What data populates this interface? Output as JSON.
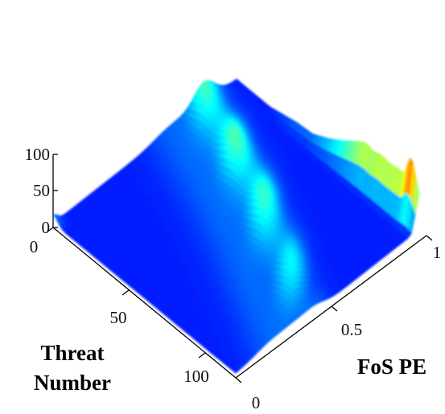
{
  "chart_data": {
    "type": "surface",
    "title": "",
    "xlabel": "FoS PE",
    "ylabel": "Threat Number",
    "zlabel": "",
    "xlim": [
      0,
      1
    ],
    "ylim": [
      0,
      120
    ],
    "zlim": [
      0,
      100
    ],
    "x_ticks": [
      "0",
      "0.5",
      "1"
    ],
    "y_ticks": [
      "0",
      "50",
      "100"
    ],
    "z_ticks": [
      "0",
      "50",
      "100"
    ],
    "colormap": "jet",
    "grid": false,
    "back_wall_profile": {
      "threat_number": [
        0,
        10,
        20,
        30,
        40,
        50,
        60,
        70,
        80,
        85,
        90,
        95,
        100,
        110,
        115,
        120
      ],
      "value": [
        2,
        3,
        5,
        10,
        15,
        17,
        28,
        42,
        58,
        65,
        62,
        66,
        64,
        67,
        100,
        55
      ]
    },
    "ridge_profile": {
      "threat_number": [
        0,
        20,
        40,
        60,
        80,
        100,
        120
      ],
      "fos_pe": [
        0.82,
        0.76,
        0.7,
        0.63,
        0.55,
        0.47,
        0.38
      ],
      "value": [
        25,
        27,
        27,
        25,
        22,
        18,
        14
      ]
    }
  }
}
